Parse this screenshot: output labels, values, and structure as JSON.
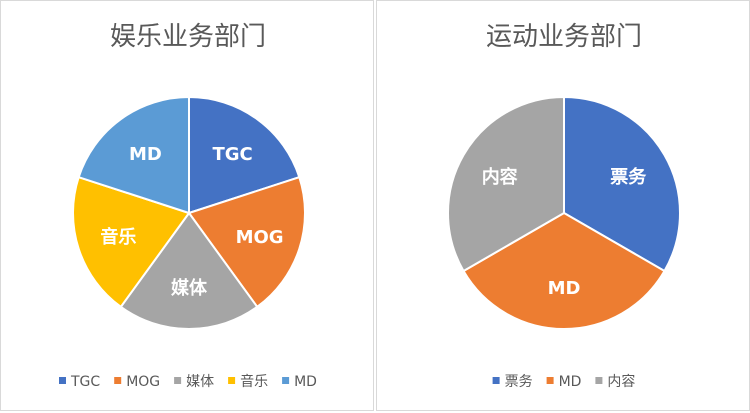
{
  "chart_data": [
    {
      "type": "pie",
      "title": "娱乐业务部门",
      "categories": [
        "TGC",
        "MOG",
        "媒体",
        "音乐",
        "MD"
      ],
      "values": [
        20,
        20,
        20,
        20,
        20
      ],
      "colors": [
        "#4472C4",
        "#ED7D31",
        "#A5A5A5",
        "#FFC000",
        "#5B9BD5"
      ],
      "legend": "bottom"
    },
    {
      "type": "pie",
      "title": "运动业务部门",
      "categories": [
        "票务",
        "MD",
        "内容"
      ],
      "values": [
        33.3,
        33.3,
        33.3
      ],
      "colors": [
        "#4472C4",
        "#ED7D31",
        "#A5A5A5"
      ],
      "legend": "bottom"
    }
  ]
}
